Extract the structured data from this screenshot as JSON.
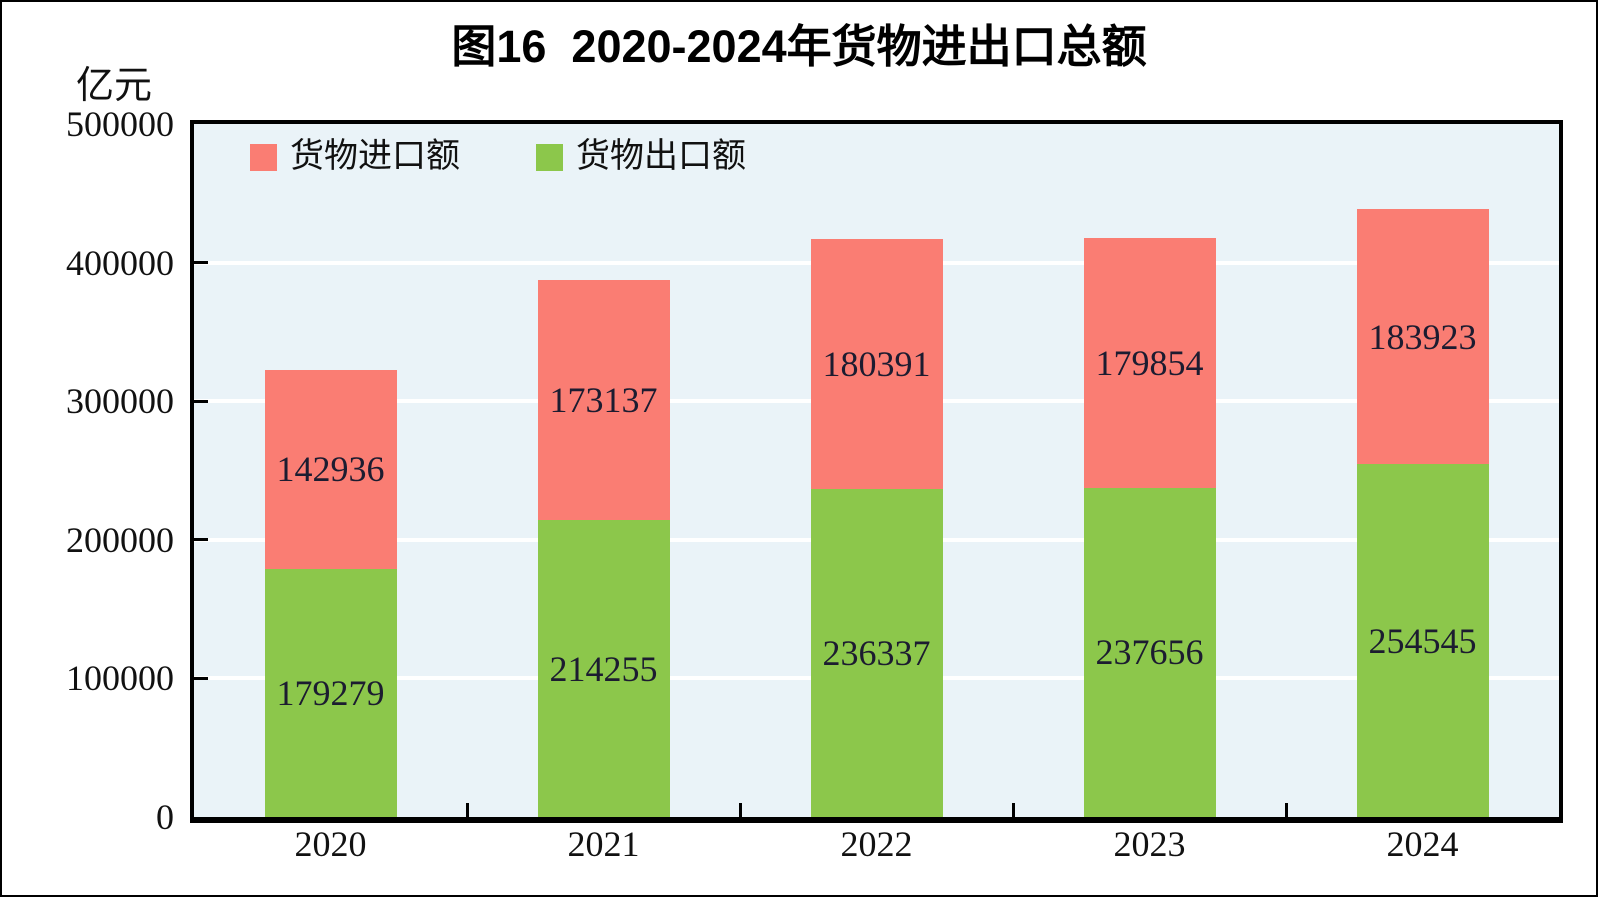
{
  "title": "图16  2020-2024年货物进出口总额",
  "y_axis_unit": "亿元",
  "colors": {
    "import_red": "#FA7D73",
    "export_green": "#8CC74B",
    "plot_background": "#EAF3F8",
    "gridline": "#FFFFFF",
    "axis_line": "#000000",
    "value_label_text": "#1C1C30",
    "axis_text": "#111111"
  },
  "legend": [
    {
      "label": "货物进口额",
      "color": "#FA7D73"
    },
    {
      "label": "货物出口额",
      "color": "#8CC74B"
    }
  ],
  "chart_data": {
    "type": "bar",
    "stacked": true,
    "title": "图16  2020-2024年货物进出口总额",
    "ylabel": "亿元",
    "xlabel": "",
    "categories": [
      "2020",
      "2021",
      "2022",
      "2023",
      "2024"
    ],
    "series": [
      {
        "name": "货物出口额",
        "color_key": "export_green",
        "values": [
          179279,
          214255,
          236337,
          237656,
          254545
        ]
      },
      {
        "name": "货物进口额",
        "color_key": "import_red",
        "values": [
          142936,
          173137,
          180391,
          179854,
          183923
        ]
      }
    ],
    "totals": [
      322215,
      387392,
      416728,
      417510,
      438468
    ],
    "ylim": [
      0,
      500000
    ],
    "ytick_interval": 100000,
    "yticks": [
      "500000",
      "400000",
      "300000",
      "200000",
      "100000",
      "0"
    ],
    "grid": true,
    "legend_position": "top-left-inside"
  }
}
